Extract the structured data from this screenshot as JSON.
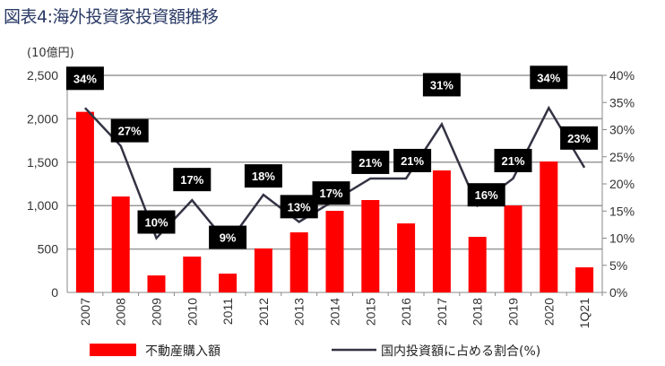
{
  "title": "図表4:海外投資家投資額推移",
  "chart_data": {
    "type": "bar+line",
    "title": "図表4:海外投資家投資額推移",
    "ylabel": "(10億円)",
    "categories": [
      "2007",
      "2008",
      "2009",
      "2010",
      "2011",
      "2012",
      "2013",
      "2014",
      "2015",
      "2016",
      "2017",
      "2018",
      "2019",
      "2020",
      "1Q21"
    ],
    "ylim": [
      0,
      2500
    ],
    "yticks": [
      "0",
      "500",
      "1,000",
      "1,500",
      "2,000",
      "2,500"
    ],
    "y2lim": [
      0,
      40
    ],
    "y2ticks": [
      "0%",
      "5%",
      "10%",
      "15%",
      "20%",
      "25%",
      "30%",
      "35%",
      "40%"
    ],
    "grid": true,
    "legend": "bottom",
    "series": [
      {
        "name": "不動産購入額",
        "type": "bar",
        "axis": "left",
        "color": "#ff0000",
        "values": [
          2080,
          1105,
          196,
          413,
          217,
          506,
          692,
          940,
          1064,
          795,
          1405,
          640,
          1002,
          1508,
          289
        ]
      },
      {
        "name": "国内投資額に占める割合(%)",
        "type": "line",
        "axis": "right",
        "color": "#333344",
        "values": [
          34,
          27,
          10,
          17,
          9,
          18,
          13,
          17,
          21,
          21,
          31,
          16,
          21,
          34,
          23
        ],
        "data_labels": [
          "34%",
          "27%",
          "10%",
          "17%",
          "9%",
          "18%",
          "13%",
          "17%",
          "21%",
          "21%",
          "31%",
          "16%",
          "21%",
          "34%",
          "23%"
        ]
      }
    ]
  }
}
